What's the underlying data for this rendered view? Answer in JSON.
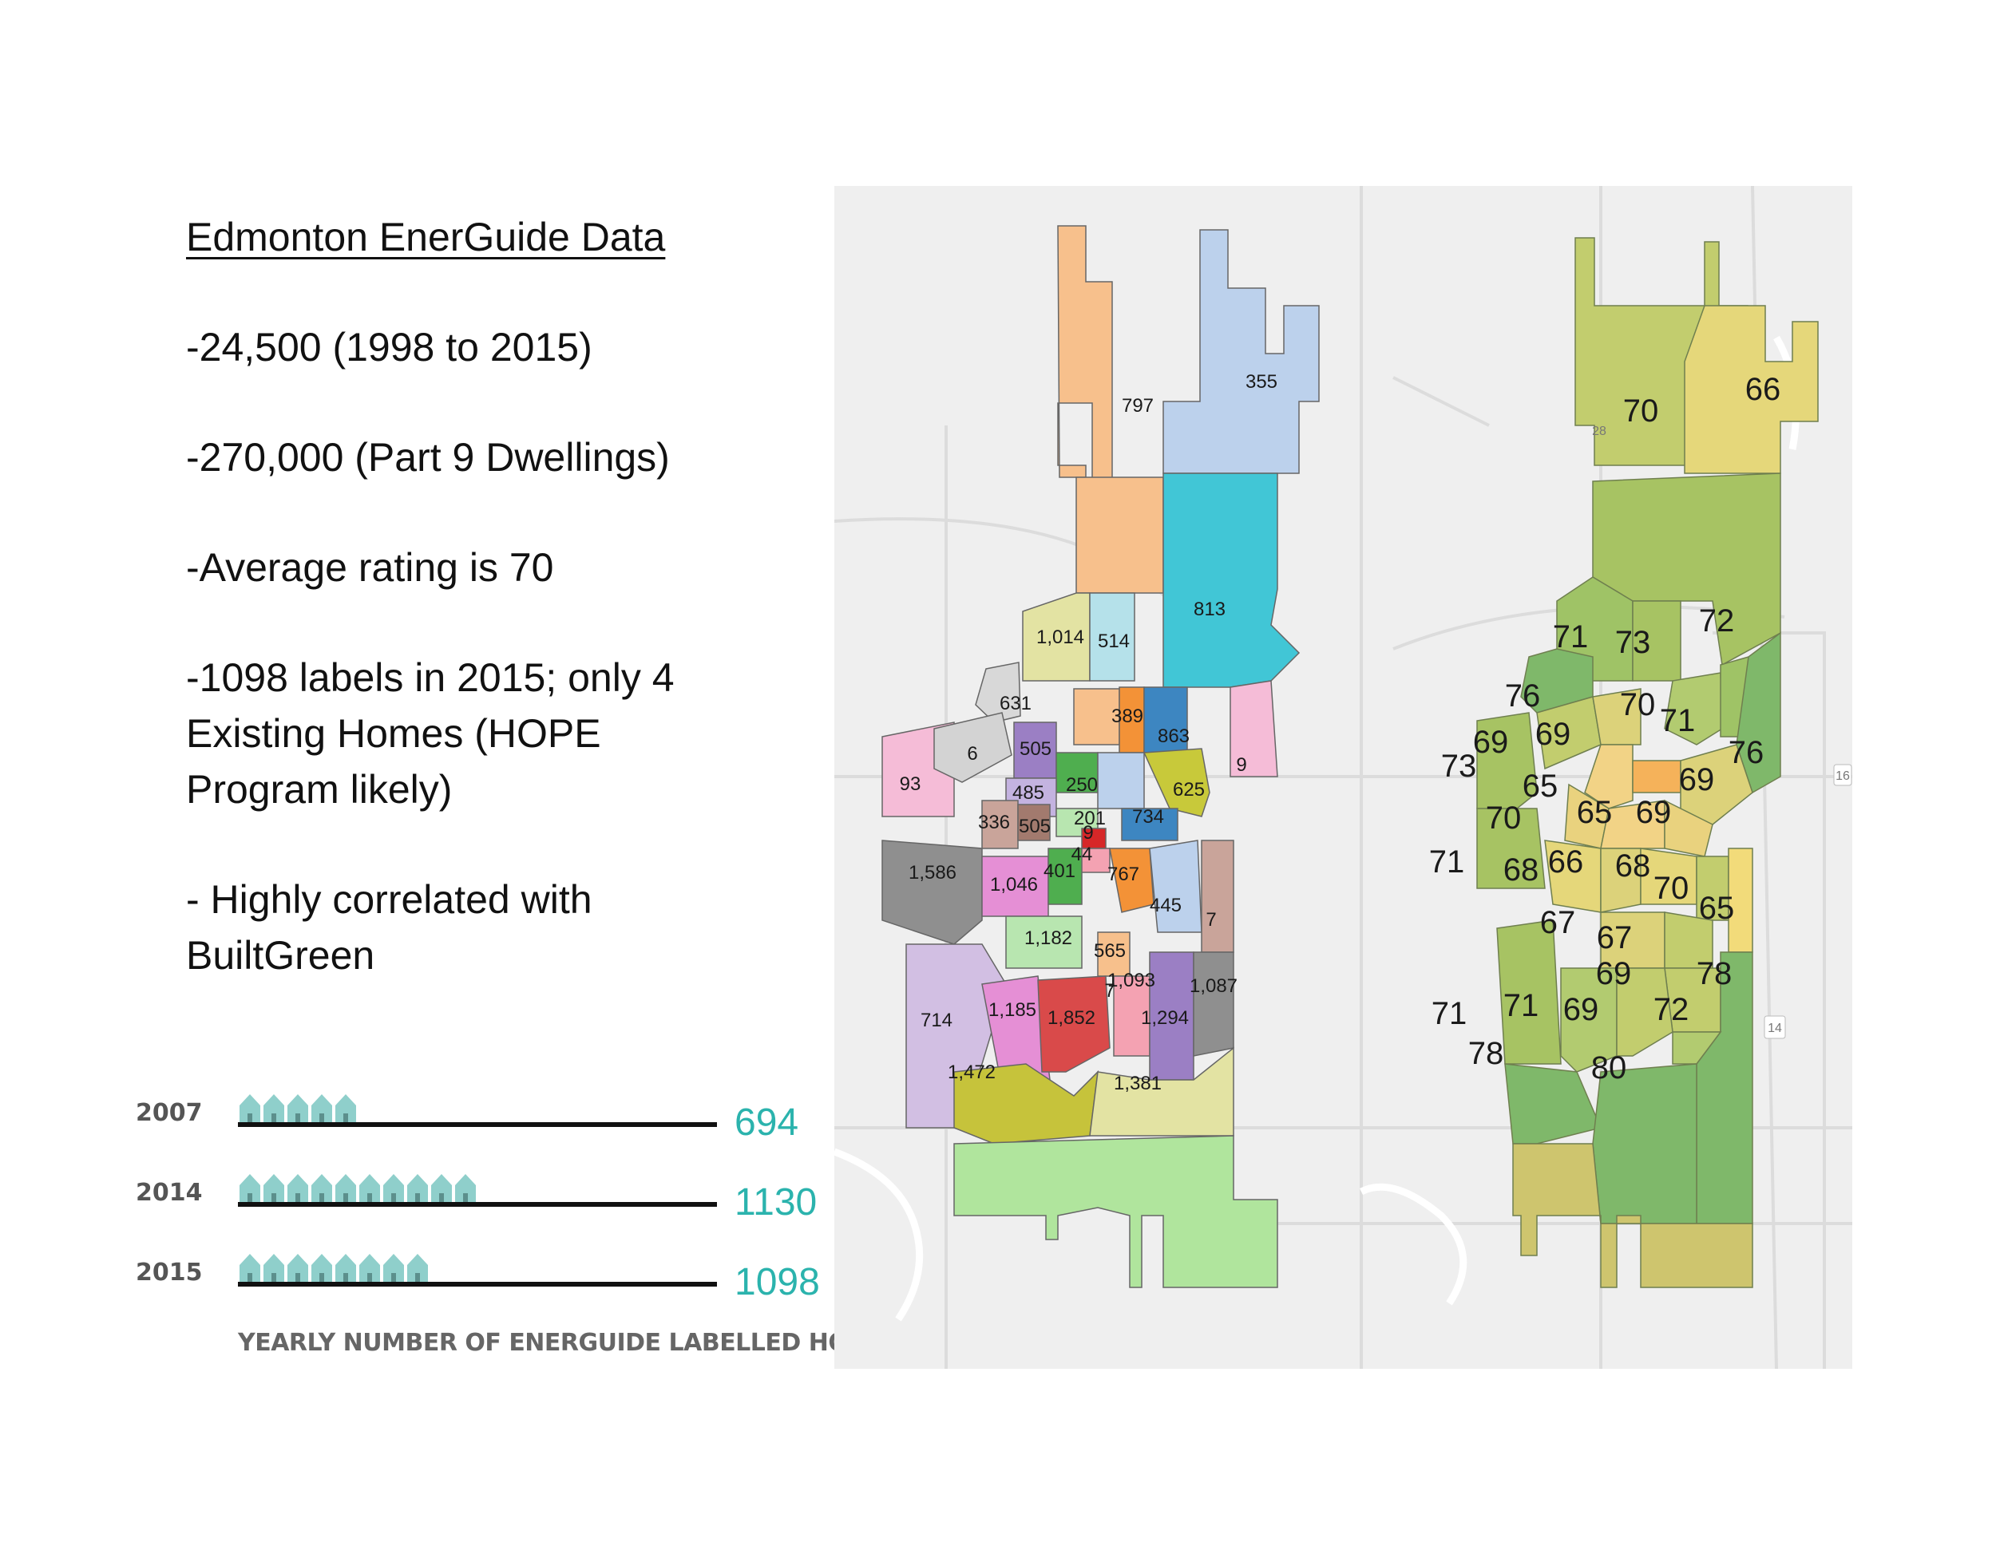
{
  "text": {
    "title": "Edmonton EnerGuide Data",
    "bullets": [
      "-24,500 (1998 to 2015)",
      "-270,000 (Part 9 Dwellings)",
      "-Average rating is 70",
      "-1098 labels in 2015; only 4 Existing Homes (HOPE Program likely)",
      "- Highly correlated with BuiltGreen"
    ]
  },
  "infographic": {
    "rows": [
      {
        "year": "2007",
        "value": "694",
        "houses": 5
      },
      {
        "year": "2014",
        "value": "1130",
        "houses": 10
      },
      {
        "year": "2015",
        "value": "1098",
        "houses": 8
      }
    ],
    "caption": "YEARLY NUMBER OF ENERGUIDE LABELLED HOMES",
    "accent": "#2bb3ad",
    "house_color": "#8fcfcb"
  },
  "map": {
    "background": "#efefef",
    "left_counts": [
      "797",
      "355",
      "813",
      "1,014",
      "514",
      "631",
      "389",
      "863",
      "9",
      "93",
      "6",
      "505",
      "250",
      "485",
      "625",
      "336",
      "505",
      "201",
      "9",
      "44",
      "734",
      "1,586",
      "1,046",
      "401",
      "767",
      "445",
      "7",
      "1,182",
      "565",
      "1,093",
      "7",
      "1,087",
      "714",
      "1,185",
      "1,852",
      "1,294",
      "1,472",
      "1,381"
    ],
    "right_ratings": [
      "70",
      "66",
      "72",
      "71",
      "73",
      "76",
      "70",
      "71",
      "76",
      "73",
      "69",
      "69",
      "65",
      "69",
      "70",
      "65",
      "69",
      "71",
      "68",
      "66",
      "68",
      "70",
      "65",
      "67",
      "67",
      "69",
      "78",
      "71",
      "71",
      "69",
      "72",
      "78",
      "80"
    ],
    "highway_shields": [
      "16",
      "14",
      "28"
    ]
  }
}
